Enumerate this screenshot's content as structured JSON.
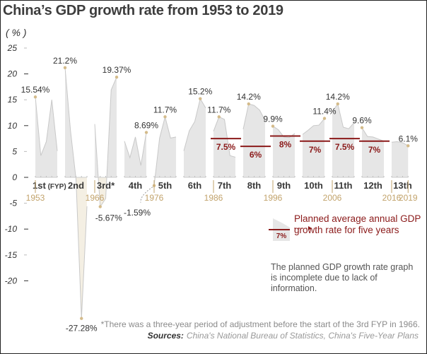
{
  "title": "China’s GDP growth rate from 1953 to 2019",
  "unit_label": "( % )",
  "chart_data": {
    "type": "area",
    "title": "China’s GDP growth rate from 1953 to 2019",
    "ylabel": "( % )",
    "xlabel": "",
    "ylim": [
      -28,
      25
    ],
    "yticks": [
      25,
      20,
      15,
      10,
      5,
      0,
      -5,
      -10,
      -15,
      -20
    ],
    "grid": false,
    "colors": {
      "positive": "#e6e6e6",
      "negative": "#f4efe3",
      "line": "#c8c8c8",
      "plan": "#8b1a1a",
      "year": "#c2a36b",
      "marker": "#d4bb8a"
    },
    "plans": [
      {
        "name": "1st",
        "suffix": "(FYP)",
        "values": [
          15.54,
          4.2,
          6.9,
          15.0,
          5.1
        ],
        "planned": null
      },
      {
        "name": "2nd",
        "suffix": "",
        "values": [
          21.2,
          9.0,
          -0.3,
          -27.28,
          -5.6
        ],
        "planned": null
      },
      {
        "name": "3rd*",
        "suffix": "",
        "values": [
          10.3,
          -5.67,
          -4.1,
          16.9,
          19.37
        ],
        "planned": null
      },
      {
        "name": "4th",
        "suffix": "",
        "values": [
          7.0,
          3.8,
          7.8,
          2.3,
          8.69
        ],
        "planned": null
      },
      {
        "name": "5th",
        "suffix": "",
        "values": [
          -1.59,
          7.6,
          11.7,
          7.6,
          7.8
        ],
        "planned": null
      },
      {
        "name": "6th",
        "suffix": "",
        "values": [
          5.1,
          9.0,
          10.8,
          15.2,
          13.4
        ],
        "planned": null
      },
      {
        "name": "7th",
        "suffix": "",
        "values": [
          8.9,
          11.7,
          11.2,
          4.2,
          3.9
        ],
        "planned": 7.5
      },
      {
        "name": "8th",
        "suffix": "",
        "values": [
          9.3,
          14.2,
          13.9,
          13.0,
          11.0
        ],
        "planned": 6
      },
      {
        "name": "9th",
        "suffix": "",
        "values": [
          9.9,
          9.2,
          7.8,
          7.7,
          8.5
        ],
        "planned": 8
      },
      {
        "name": "10th",
        "suffix": "",
        "values": [
          8.3,
          9.1,
          10.0,
          10.1,
          11.4
        ],
        "planned": 7
      },
      {
        "name": "11th",
        "suffix": "",
        "values": [
          12.7,
          14.2,
          9.7,
          9.4,
          10.6
        ],
        "planned": 7.5
      },
      {
        "name": "12th",
        "suffix": "",
        "values": [
          9.6,
          7.9,
          7.8,
          7.4,
          7.0
        ],
        "planned": 7
      },
      {
        "name": "13th",
        "suffix": "",
        "values": [
          6.8,
          6.9,
          6.7,
          6.1
        ],
        "planned": null
      }
    ],
    "annotations": [
      {
        "plan": 0,
        "index": 0,
        "label": "15.54%"
      },
      {
        "plan": 1,
        "index": 0,
        "label": "21.2%"
      },
      {
        "plan": 1,
        "index": 3,
        "label": "-27.28%"
      },
      {
        "plan": 2,
        "index": 1,
        "label": "-5.67%"
      },
      {
        "plan": 2,
        "index": 4,
        "label": "19.37%"
      },
      {
        "plan": 3,
        "index": 4,
        "label": "8.69%"
      },
      {
        "plan": 4,
        "index": 0,
        "label": "-1.59%"
      },
      {
        "plan": 4,
        "index": 2,
        "label": "11.7%"
      },
      {
        "plan": 5,
        "index": 3,
        "label": "15.2%"
      },
      {
        "plan": 6,
        "index": 1,
        "label": "11.7%"
      },
      {
        "plan": 7,
        "index": 1,
        "label": "14.2%"
      },
      {
        "plan": 8,
        "index": 0,
        "label": "9.9%"
      },
      {
        "plan": 9,
        "index": 4,
        "label": "11.4%"
      },
      {
        "plan": 10,
        "index": 1,
        "label": "14.2%"
      },
      {
        "plan": 11,
        "index": 0,
        "label": "9.6%"
      },
      {
        "plan": 12,
        "index": 3,
        "label": "6.1%"
      }
    ],
    "year_markers": [
      {
        "plan": 0,
        "label": "1953"
      },
      {
        "plan": 2,
        "label": "1966"
      },
      {
        "plan": 4,
        "label": "1976"
      },
      {
        "plan": 6,
        "label": "1986"
      },
      {
        "plan": 8,
        "label": "1996"
      },
      {
        "plan": 10,
        "label": "2006"
      },
      {
        "plan": 12,
        "label": "2016"
      },
      {
        "plan": 12,
        "label": "2019",
        "end": true
      }
    ]
  },
  "legend": {
    "sample_planned": "7%",
    "planned_label": "Planned average annual GDP growth rate for five years",
    "note": "The planned GDP growth rate graph is incomplete due to lack of information."
  },
  "footnote": "*There was a three-year period of adjustment before the start of the 3rd FYP in 1966.",
  "sources": {
    "label": "Sources:",
    "text": "China's National Bureau of Statistics, China's Five-Year Plans"
  }
}
